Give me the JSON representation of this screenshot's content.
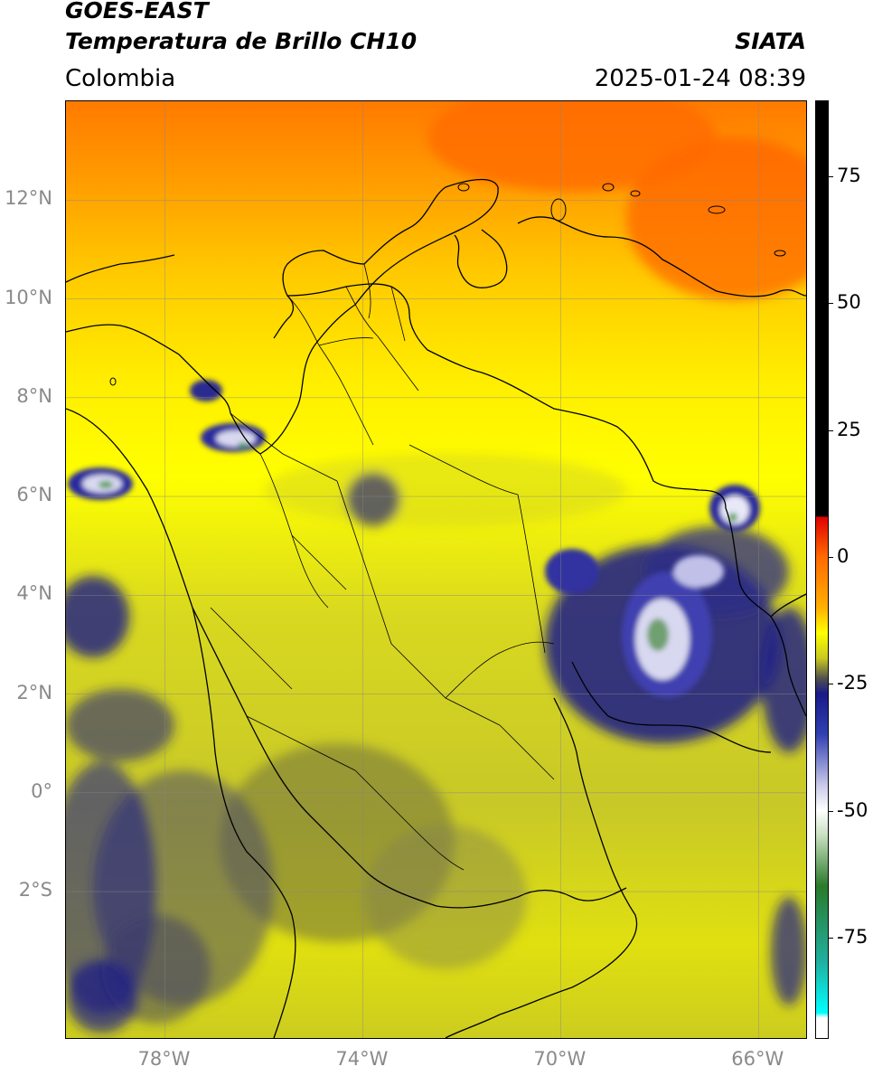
{
  "header": {
    "satellite": "GOES-EAST",
    "product": "Temperatura de Brillo CH10",
    "agency": "SIATA",
    "region": "Colombia",
    "datetime": "2025-01-24 08:39"
  },
  "map": {
    "lon_range": [
      -80,
      -65
    ],
    "lat_range": [
      -5,
      14
    ],
    "lat_ticks": [
      {
        "value": 12,
        "label": "12°N"
      },
      {
        "value": 10,
        "label": "10°N"
      },
      {
        "value": 8,
        "label": "8°N"
      },
      {
        "value": 6,
        "label": "6°N"
      },
      {
        "value": 4,
        "label": "4°N"
      },
      {
        "value": 2,
        "label": "2°N"
      },
      {
        "value": 0,
        "label": "0°"
      },
      {
        "value": -2,
        "label": "2°S"
      }
    ],
    "lon_ticks": [
      {
        "value": -78,
        "label": "78°W"
      },
      {
        "value": -74,
        "label": "74°W"
      },
      {
        "value": -70,
        "label": "70°W"
      },
      {
        "value": -66,
        "label": "66°W"
      }
    ],
    "grid": true
  },
  "colorbar": {
    "range": [
      -95,
      90
    ],
    "ticks": [
      {
        "value": 75,
        "label": "75"
      },
      {
        "value": 50,
        "label": "50"
      },
      {
        "value": 25,
        "label": "25"
      },
      {
        "value": 0,
        "label": "0"
      },
      {
        "value": -25,
        "label": "-25"
      },
      {
        "value": -50,
        "label": "-50"
      },
      {
        "value": -75,
        "label": "-75"
      }
    ],
    "stops": [
      {
        "value": 90,
        "color": "#000000"
      },
      {
        "value": 8,
        "color": "#000000"
      },
      {
        "value": 7.9,
        "color": "#e00000"
      },
      {
        "value": 0,
        "color": "#ff6a00"
      },
      {
        "value": -10,
        "color": "#ffb000"
      },
      {
        "value": -15,
        "color": "#ffff00"
      },
      {
        "value": -20,
        "color": "#c8c820"
      },
      {
        "value": -24,
        "color": "#505050"
      },
      {
        "value": -27,
        "color": "#1a1a8a"
      },
      {
        "value": -35,
        "color": "#3040b0"
      },
      {
        "value": -45,
        "color": "#c8c8e8"
      },
      {
        "value": -50,
        "color": "#ffffff"
      },
      {
        "value": -55,
        "color": "#c8e0c0"
      },
      {
        "value": -65,
        "color": "#2a7a2a"
      },
      {
        "value": -80,
        "color": "#20b0a0"
      },
      {
        "value": -90,
        "color": "#00ffff"
      },
      {
        "value": -91,
        "color": "#ffffff"
      },
      {
        "value": -95,
        "color": "#ffffff"
      }
    ]
  }
}
